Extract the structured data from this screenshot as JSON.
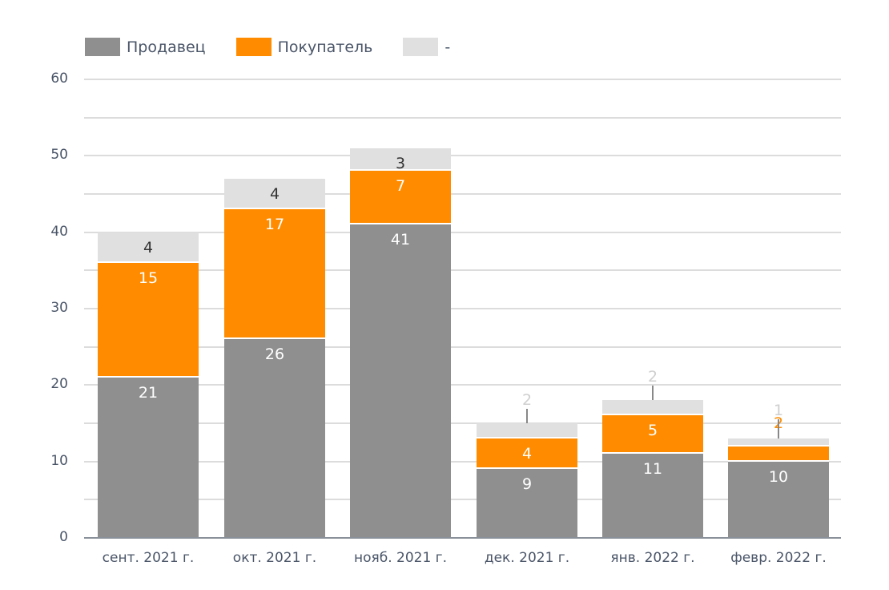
{
  "chart_data": {
    "type": "bar",
    "stacked": true,
    "title": "",
    "xlabel": "",
    "ylabel": "",
    "ylim": [
      0,
      60
    ],
    "yticks": [
      0,
      10,
      20,
      30,
      40,
      50,
      60
    ],
    "minor_gridlines": [
      5,
      15,
      25,
      35,
      45,
      55
    ],
    "grid": true,
    "legend_position": "top-left",
    "categories": [
      "сент. 2021 г.",
      "окт. 2021 г.",
      "нояб. 2021 г.",
      "дек. 2021 г.",
      "янв. 2022 г.",
      "февр. 2022 г."
    ],
    "series": [
      {
        "name": "Продавец",
        "color": "#8f8f8f",
        "values": [
          21,
          26,
          41,
          9,
          11,
          10
        ]
      },
      {
        "name": "Покупатель",
        "color": "#ff8c00",
        "values": [
          15,
          17,
          7,
          4,
          5,
          2
        ]
      },
      {
        "name": "-",
        "color": "#e0e0e0",
        "values": [
          4,
          4,
          3,
          2,
          2,
          1
        ]
      }
    ]
  },
  "legend": {
    "items": [
      {
        "label": "Продавец",
        "color": "#8f8f8f"
      },
      {
        "label": "Покупатель",
        "color": "#ff8c00"
      },
      {
        "label": "-",
        "color": "#e0e0e0"
      }
    ]
  },
  "axis": {
    "y_labels": [
      "0",
      "10",
      "20",
      "30",
      "40",
      "50",
      "60"
    ]
  },
  "bars": [
    {
      "category": "сент. 2021 г.",
      "seller": "21",
      "buyer": "15",
      "other": "4"
    },
    {
      "category": "окт. 2021 г.",
      "seller": "26",
      "buyer": "17",
      "other": "4"
    },
    {
      "category": "нояб. 2021 г.",
      "seller": "41",
      "buyer": "7",
      "other": "3"
    },
    {
      "category": "дек. 2021 г.",
      "seller": "9",
      "buyer": "4",
      "other": "2"
    },
    {
      "category": "янв. 2022 г.",
      "seller": "11",
      "buyer": "5",
      "other": "2"
    },
    {
      "category": "февр. 2022 г.",
      "seller": "10",
      "buyer": "2",
      "other": "1"
    }
  ]
}
